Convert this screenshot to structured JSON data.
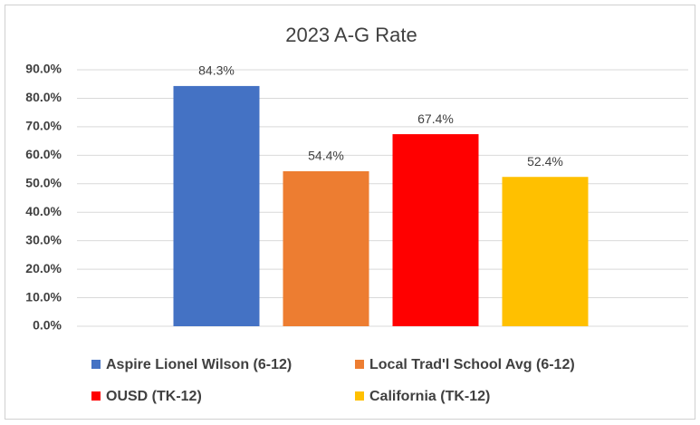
{
  "chart_data": {
    "type": "bar",
    "title": "2023 A-G Rate",
    "categories": [
      null
    ],
    "series": [
      {
        "name": "Aspire Lionel Wilson (6-12)",
        "color": "#4472c4",
        "values": [
          84.3
        ],
        "value_labels": [
          "84.3%"
        ]
      },
      {
        "name": "Local Trad'l School Avg (6-12)",
        "color": "#ed7d31",
        "values": [
          54.4
        ],
        "value_labels": [
          "54.4%"
        ]
      },
      {
        "name": "OUSD (TK-12)",
        "color": "#ff0000",
        "values": [
          67.4
        ],
        "value_labels": [
          "67.4%"
        ]
      },
      {
        "name": "California (TK-12)",
        "color": "#ffc000",
        "values": [
          52.4
        ],
        "value_labels": [
          "52.4%"
        ]
      }
    ],
    "ylim": [
      0,
      90
    ],
    "yticks": [
      {
        "value": 0,
        "label": "0.0%"
      },
      {
        "value": 10,
        "label": "10.0%"
      },
      {
        "value": 20,
        "label": "20.0%"
      },
      {
        "value": 30,
        "label": "30.0%"
      },
      {
        "value": 40,
        "label": "40.0%"
      },
      {
        "value": 50,
        "label": "50.0%"
      },
      {
        "value": 60,
        "label": "60.0%"
      },
      {
        "value": 70,
        "label": "70.0%"
      },
      {
        "value": 80,
        "label": "80.0%"
      },
      {
        "value": 90,
        "label": "90.0%"
      }
    ],
    "grid": true,
    "legend": "bottom"
  }
}
